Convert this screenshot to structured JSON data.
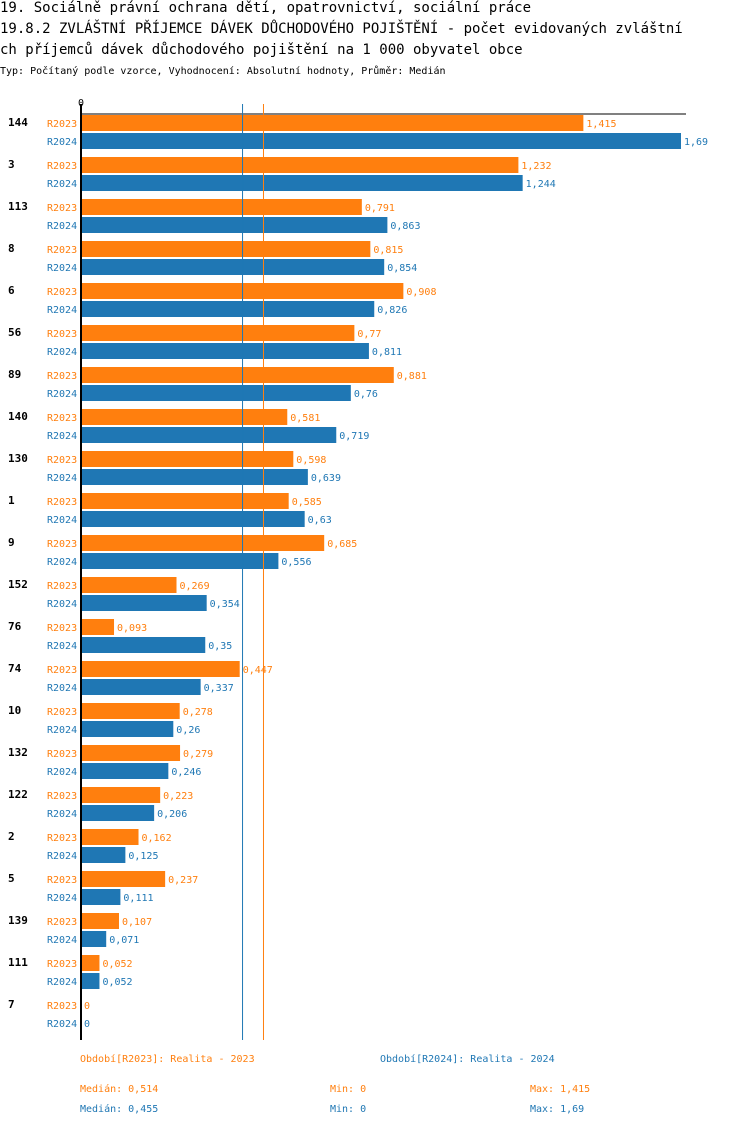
{
  "title_line1": "19. Sociálně právní ochrana dětí, opatrovnictví, sociální práce",
  "title_line2": "19.8.2 ZVLÁŠTNÍ PŘÍJEMCE DÁVEK DŮCHODOVÉHO POJIŠTĚNÍ - počet evidovaných zvláštní",
  "title_line3": "ch příjemců dávek důchodového pojištění na 1 000 obyvatel obce",
  "subtitle": "Typ: Počítaný podle vzorce, Vyhodnocení: Absolutní hodnoty, Průměr: Medián",
  "colors": {
    "r2023": "#FF7F0E",
    "r2024": "#1F77B4"
  },
  "chart_data": {
    "type": "bar",
    "orientation": "horizontal",
    "axis_zero_label": "0",
    "xlim": [
      0,
      1.69
    ],
    "categories": [
      "144",
      "3",
      "113",
      "8",
      "6",
      "56",
      "89",
      "140",
      "130",
      "1",
      "9",
      "152",
      "76",
      "74",
      "10",
      "132",
      "122",
      "2",
      "5",
      "139",
      "111",
      "7"
    ],
    "series": [
      {
        "name": "R2023",
        "values": [
          1.415,
          1.232,
          0.791,
          0.815,
          0.908,
          0.77,
          0.881,
          0.581,
          0.598,
          0.585,
          0.685,
          0.269,
          0.093,
          0.447,
          0.278,
          0.279,
          0.223,
          0.162,
          0.237,
          0.107,
          0.052,
          0
        ],
        "labels": [
          "1,415",
          "1,232",
          "0,791",
          "0,815",
          "0,908",
          "0,77",
          "0,881",
          "0,581",
          "0,598",
          "0,585",
          "0,685",
          "0,269",
          "0,093",
          "0,447",
          "0,278",
          "0,279",
          "0,223",
          "0,162",
          "0,237",
          "0,107",
          "0,052",
          "0"
        ]
      },
      {
        "name": "R2024",
        "values": [
          1.69,
          1.244,
          0.863,
          0.854,
          0.826,
          0.811,
          0.76,
          0.719,
          0.639,
          0.63,
          0.556,
          0.354,
          0.35,
          0.337,
          0.26,
          0.246,
          0.206,
          0.125,
          0.111,
          0.071,
          0.052,
          0
        ],
        "labels": [
          "1,69",
          "1,244",
          "0,863",
          "0,854",
          "0,826",
          "0,811",
          "0,76",
          "0,719",
          "0,639",
          "0,63",
          "0,556",
          "0,354",
          "0,35",
          "0,337",
          "0,26",
          "0,246",
          "0,206",
          "0,125",
          "0,111",
          "0,071",
          "0,052",
          "0"
        ]
      }
    ],
    "reference_lines": [
      {
        "series": "R2023",
        "name": "Medián",
        "value": 0.514
      },
      {
        "series": "R2024",
        "name": "Medián",
        "value": 0.455
      }
    ]
  },
  "legend": {
    "r2023": "Období[R2023]: Realita - 2023",
    "r2024": "Období[R2024]: Realita - 2024"
  },
  "stats": {
    "r2023": {
      "median": "Medián: 0,514",
      "min": "Min: 0",
      "max": "Max: 1,415"
    },
    "r2024": {
      "median": "Medián: 0,455",
      "min": "Min: 0",
      "max": "Max: 1,69"
    }
  }
}
